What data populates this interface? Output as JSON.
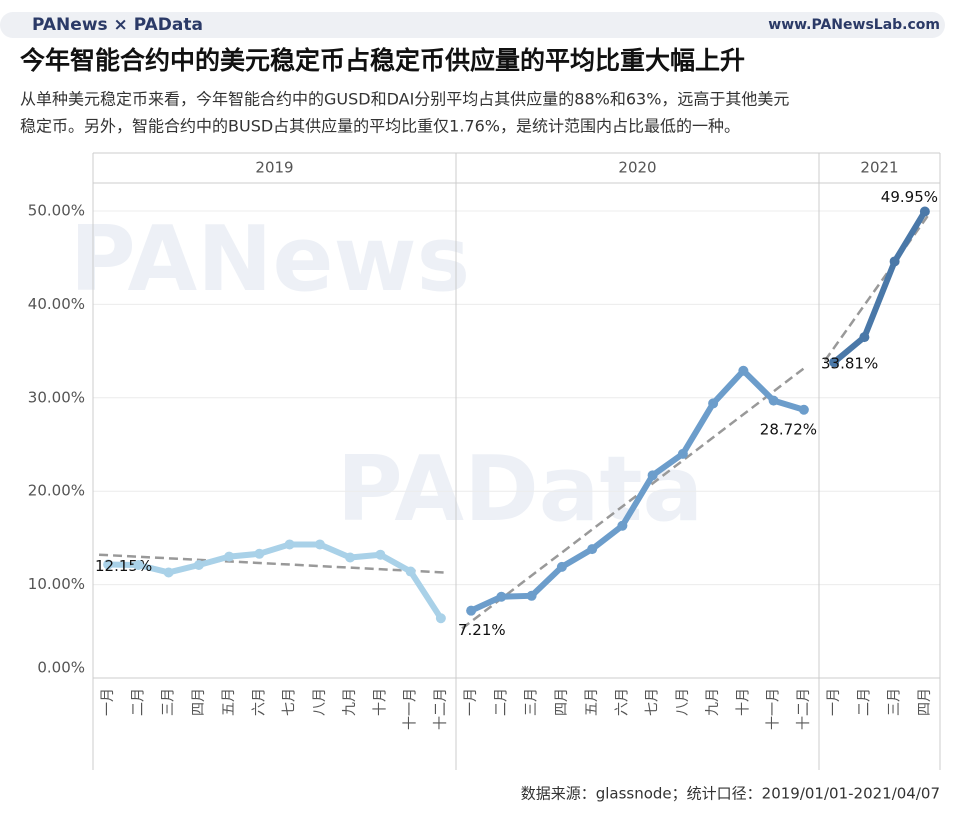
{
  "brand": {
    "name": "PANews × PAData",
    "url": "www.PANewsLab.com"
  },
  "watermarks": [
    "PANews",
    "PAData"
  ],
  "chart_data": {
    "type": "line",
    "title": "今年智能合约中的美元稳定币占稳定币供应量的平均比重大幅上升",
    "subtitle": [
      "从单种美元稳定币来看，今年智能合约中的GUSD和DAI分别平均占其供应量的88%和63%，远高于其他美元",
      "稳定币。另外，智能合约中的BUSD占其供应量的平均比重仅1.76%，是统计范围内占比最低的一种。"
    ],
    "source": "数据来源：glassnode；统计口径：2019/01/01-2021/04/07",
    "ylim": [
      0,
      53
    ],
    "yticks": [
      {
        "value": 0,
        "label": "0.00%"
      },
      {
        "value": 10,
        "label": "10.00%"
      },
      {
        "value": 20,
        "label": "20.00%"
      },
      {
        "value": 30,
        "label": "30.00%"
      },
      {
        "value": 40,
        "label": "40.00%"
      },
      {
        "value": 50,
        "label": "50.00%"
      }
    ],
    "grid": true,
    "panels": [
      {
        "label": "2019",
        "color": "#a9d1e8",
        "categories": [
          "一月",
          "二月",
          "三月",
          "四月",
          "五月",
          "六月",
          "七月",
          "八月",
          "九月",
          "十月",
          "十一月",
          "十二月"
        ],
        "values": [
          12.15,
          12.1,
          11.3,
          12.1,
          13.0,
          13.3,
          14.3,
          14.3,
          12.9,
          13.2,
          11.4,
          6.4
        ],
        "value_labels": [
          "12.15%",
          null,
          null,
          null,
          null,
          null,
          null,
          null,
          null,
          null,
          null,
          null
        ],
        "trend": [
          13.2,
          11.3
        ]
      },
      {
        "label": "2020",
        "color": "#6c9dcb",
        "categories": [
          "一月",
          "二月",
          "三月",
          "四月",
          "五月",
          "六月",
          "七月",
          "八月",
          "九月",
          "十月",
          "十一月",
          "十二月"
        ],
        "values": [
          7.21,
          8.7,
          8.8,
          11.9,
          13.8,
          16.3,
          21.7,
          24.0,
          29.4,
          32.9,
          29.7,
          28.72
        ],
        "value_labels": [
          "7.21%",
          null,
          null,
          null,
          null,
          null,
          null,
          null,
          null,
          null,
          null,
          "28.72%"
        ],
        "trend": [
          5.3,
          33.4
        ]
      },
      {
        "label": "2021",
        "color": "#4a78a8",
        "categories": [
          "一月",
          "二月",
          "三月",
          "四月"
        ],
        "values": [
          33.81,
          36.5,
          44.6,
          49.95
        ],
        "value_labels": [
          "33.81%",
          null,
          null,
          "49.95%"
        ],
        "trend": [
          34.0,
          49.5
        ]
      }
    ]
  }
}
